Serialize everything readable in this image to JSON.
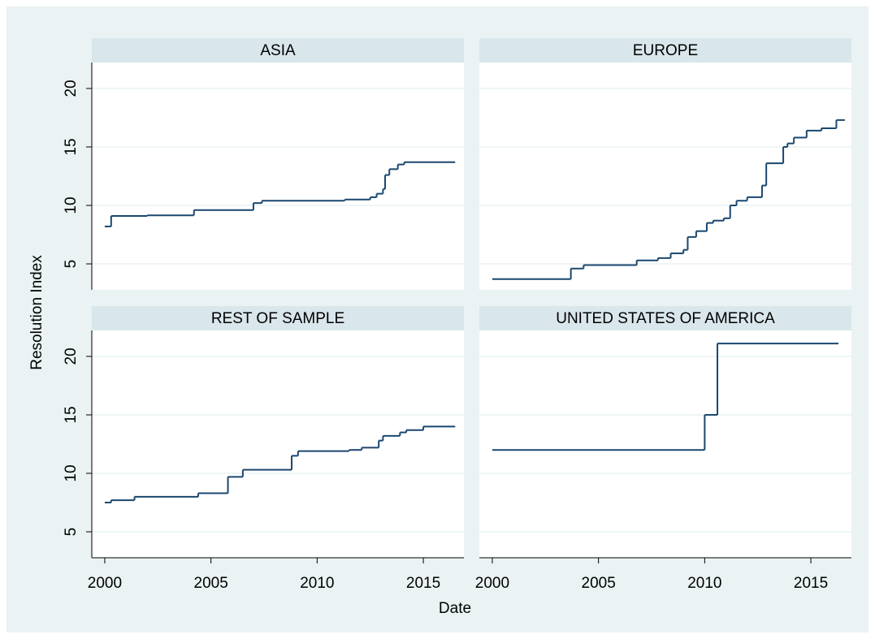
{
  "ylabel": "Resolution Index",
  "xlabel": "Date",
  "chart_data": [
    {
      "type": "line",
      "step": true,
      "title": "ASIA",
      "color": "#1a476f",
      "x": [
        2000,
        2000.3,
        2002,
        2004.2,
        2007,
        2007.4,
        2011.3,
        2012.5,
        2012.8,
        2013.1,
        2013.2,
        2013.4,
        2013.8,
        2014.1,
        2016.5
      ],
      "values": [
        8.2,
        9.1,
        9.15,
        9.6,
        10.2,
        10.4,
        10.5,
        10.7,
        11,
        11.4,
        12.6,
        13.1,
        13.5,
        13.7,
        13.7
      ],
      "xlim": [
        1999.39,
        2016.91
      ],
      "ylim": [
        2.78,
        22.22
      ],
      "xticks": [
        2000,
        2005,
        2010,
        2015
      ],
      "yticks": [
        5,
        10,
        15,
        20
      ],
      "grid": true
    },
    {
      "type": "line",
      "step": true,
      "title": "EUROPE",
      "color": "#1a476f",
      "x": [
        2000,
        2003.7,
        2004.3,
        2006.8,
        2007.8,
        2008.4,
        2009,
        2009.2,
        2009.6,
        2010.1,
        2010.4,
        2010.9,
        2011.2,
        2011.5,
        2012,
        2012.7,
        2012.9,
        2013.7,
        2013.9,
        2014.2,
        2014.8,
        2015.5,
        2016.2,
        2016.6
      ],
      "values": [
        3.7,
        4.6,
        4.9,
        5.3,
        5.5,
        5.9,
        6.2,
        7.3,
        7.8,
        8.5,
        8.7,
        8.9,
        10,
        10.4,
        10.7,
        11.7,
        13.6,
        15,
        15.3,
        15.8,
        16.4,
        16.6,
        17.3,
        17.3
      ],
      "xlim": [
        1999.39,
        2016.91
      ],
      "ylim": [
        2.78,
        22.22
      ],
      "xticks": [
        2000,
        2005,
        2010,
        2015
      ],
      "yticks": [
        5,
        10,
        15,
        20
      ],
      "grid": true
    },
    {
      "type": "line",
      "step": true,
      "title": "REST OF SAMPLE",
      "color": "#1a476f",
      "x": [
        2000,
        2000.3,
        2001.4,
        2004.4,
        2005.8,
        2006.5,
        2008.8,
        2009.1,
        2011.5,
        2012.1,
        2012.9,
        2013.1,
        2013.9,
        2014.2,
        2015,
        2016.5
      ],
      "values": [
        7.5,
        7.7,
        8,
        8.3,
        9.7,
        10.3,
        11.5,
        11.9,
        12,
        12.2,
        12.8,
        13.2,
        13.5,
        13.7,
        14,
        14
      ],
      "xlim": [
        1999.39,
        2016.91
      ],
      "ylim": [
        2.78,
        22.22
      ],
      "xticks": [
        2000,
        2005,
        2010,
        2015
      ],
      "yticks": [
        5,
        10,
        15,
        20
      ],
      "grid": true
    },
    {
      "type": "line",
      "step": true,
      "title": "UNITED STATES OF AMERICA",
      "color": "#1a476f",
      "x": [
        2000,
        2010,
        2010.6,
        2016.3
      ],
      "values": [
        12,
        15,
        21.1,
        21.1
      ],
      "xlim": [
        1999.39,
        2016.91
      ],
      "ylim": [
        2.78,
        22.22
      ],
      "xticks": [
        2000,
        2005,
        2010,
        2015
      ],
      "yticks": [
        5,
        10,
        15,
        20
      ],
      "grid": true
    }
  ]
}
